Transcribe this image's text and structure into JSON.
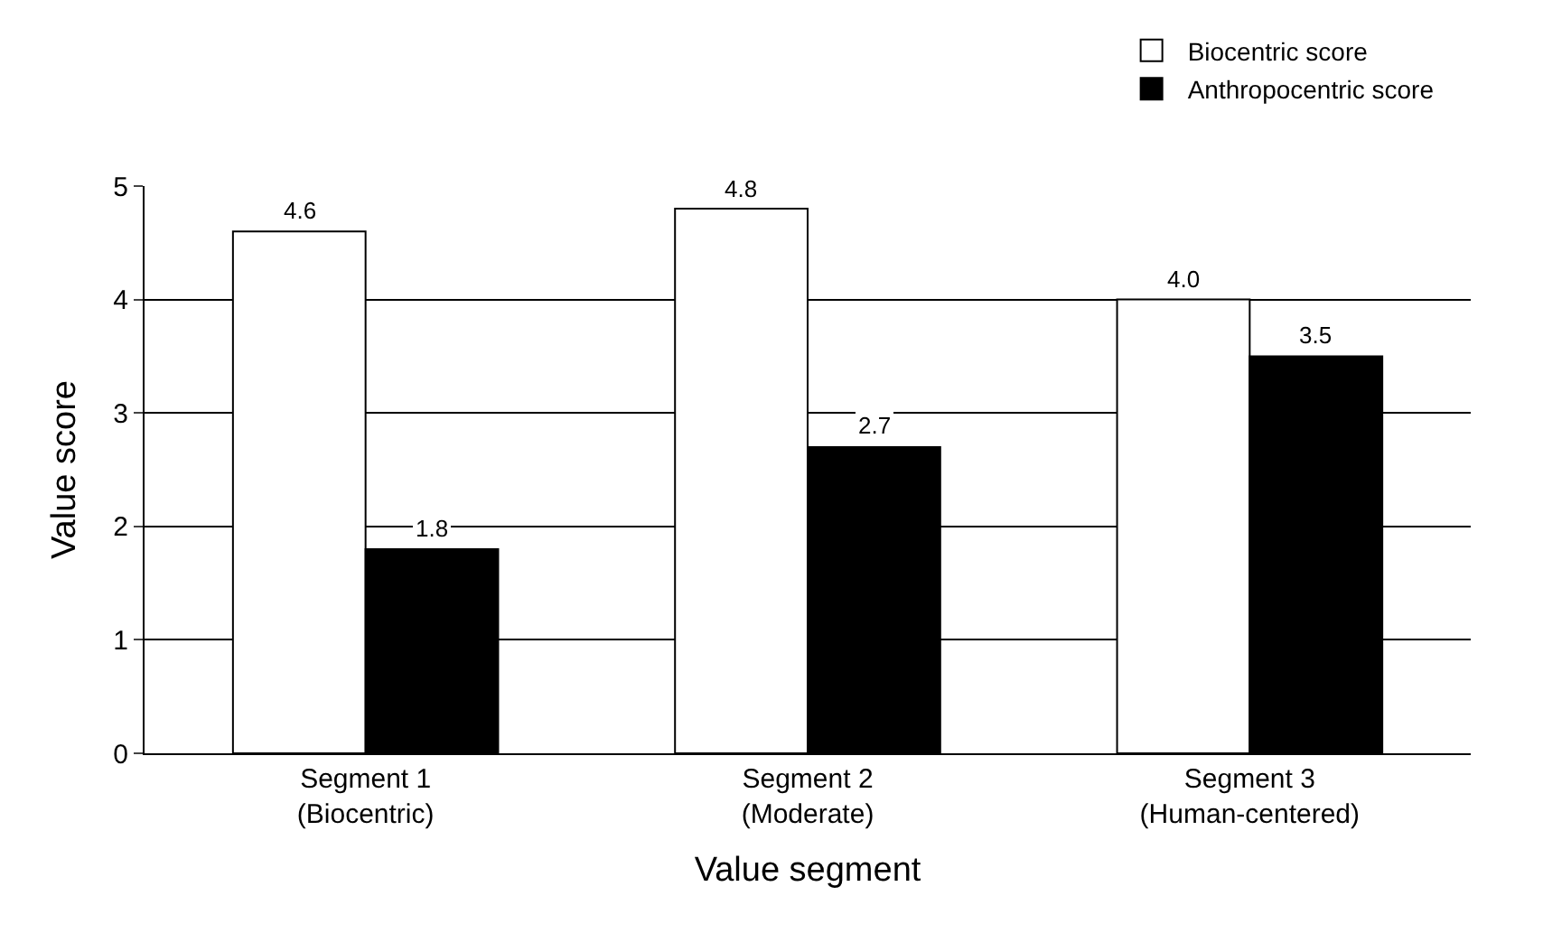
{
  "chart_data": {
    "type": "bar",
    "xlabel": "Value segment",
    "ylabel": "Value score",
    "categories": [
      "Segment 1\n(Biocentric)",
      "Segment 2\n(Moderate)",
      "Segment 3\n(Human-centered)"
    ],
    "series": [
      {
        "name": "Biocentric score",
        "color": "#ffffff",
        "values": [
          4.6,
          4.8,
          4.0
        ],
        "value_labels": [
          "4.6",
          "4.8",
          "4.0"
        ]
      },
      {
        "name": "Anthropocentric score",
        "color": "#000000",
        "values": [
          1.8,
          2.7,
          3.5
        ],
        "value_labels": [
          "1.8",
          "2.7",
          "3.5"
        ]
      }
    ],
    "ylim": [
      0,
      5
    ],
    "yticks": [
      0,
      1,
      2,
      3,
      4,
      5
    ],
    "grid": "y",
    "legend": "top right"
  }
}
